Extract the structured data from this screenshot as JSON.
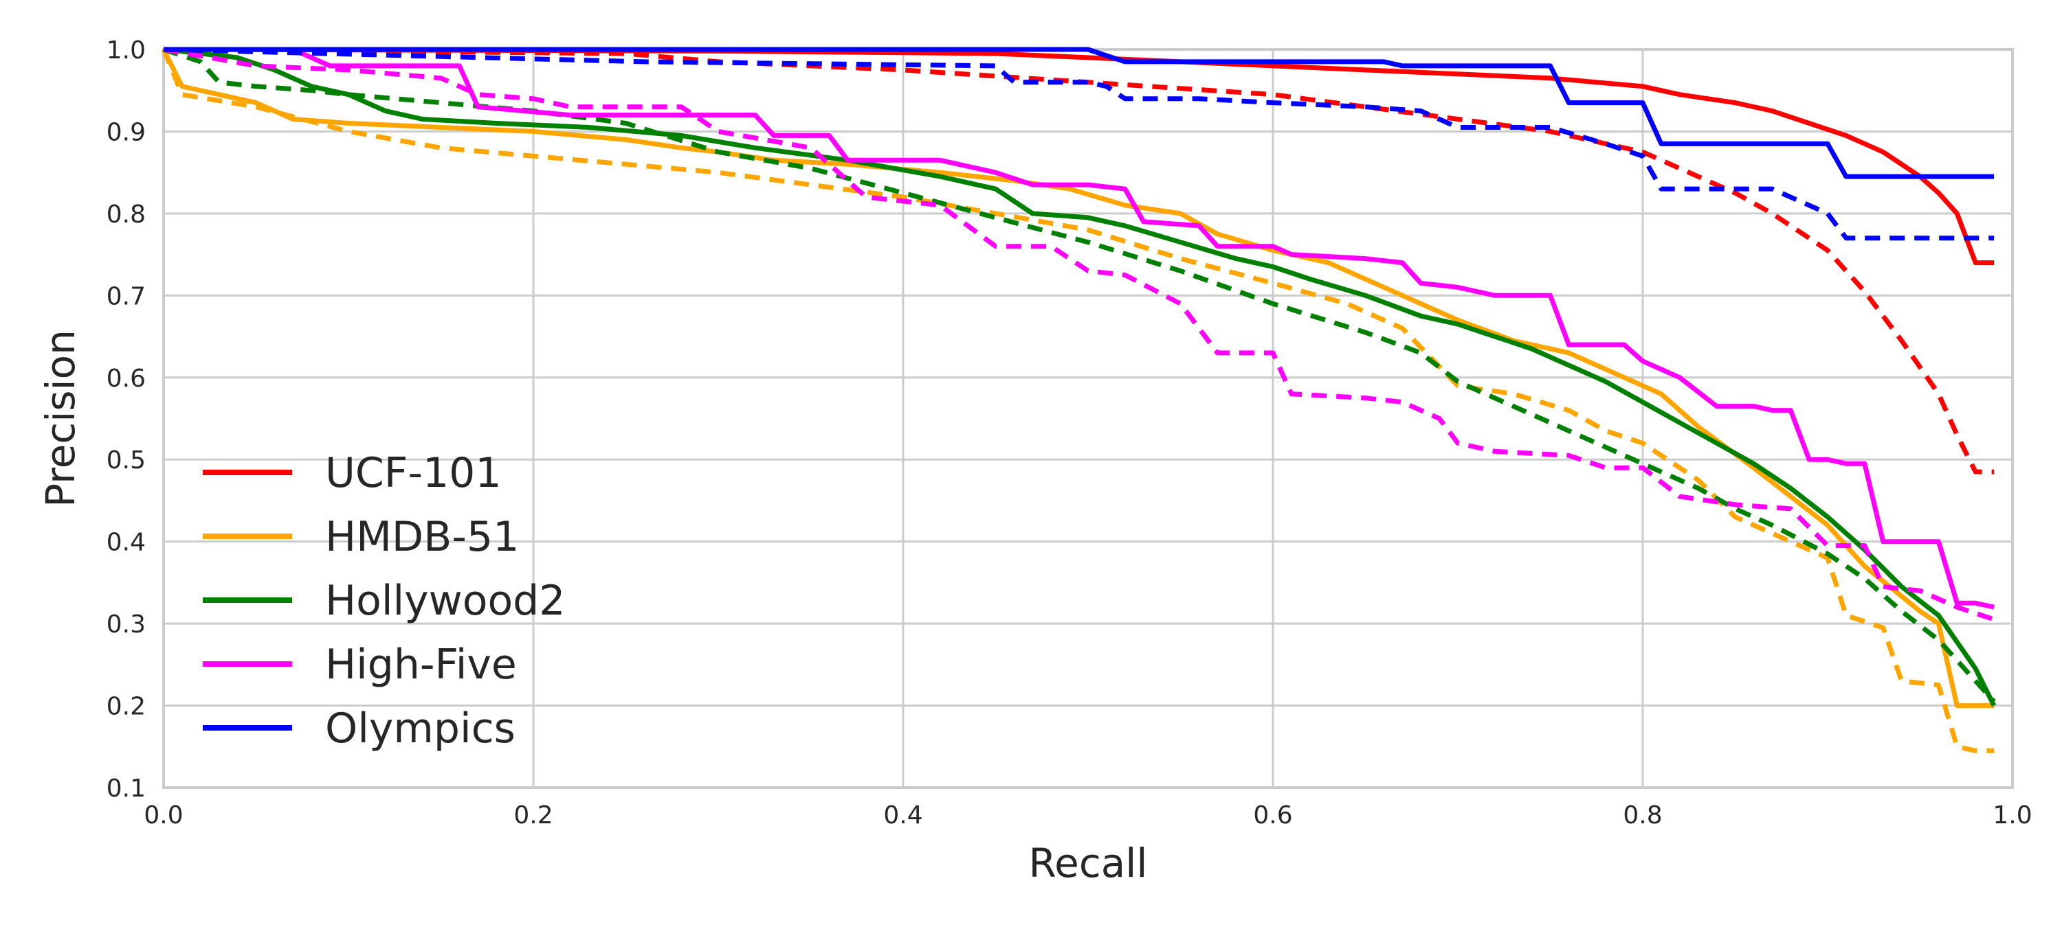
{
  "chart_data": {
    "type": "line",
    "xlabel": "Recall",
    "ylabel": "Precision",
    "xlim": [
      0.0,
      1.0
    ],
    "ylim": [
      0.1,
      1.0
    ],
    "xticks": [
      "0.0",
      "0.2",
      "0.4",
      "0.6",
      "0.8",
      "1.0"
    ],
    "yticks": [
      "0.1",
      "0.2",
      "0.3",
      "0.4",
      "0.5",
      "0.6",
      "0.7",
      "0.8",
      "0.9",
      "1.0"
    ],
    "grid": true,
    "legend_position": "lower-left",
    "legend": [
      "UCF-101",
      "HMDB-51",
      "Hollywood2",
      "High-Five",
      "Olympics"
    ],
    "series": [
      {
        "name": "UCF-101",
        "color": "#ff0000",
        "style": "solid",
        "x": [
          0.0,
          0.3,
          0.45,
          0.5,
          0.55,
          0.6,
          0.65,
          0.7,
          0.75,
          0.8,
          0.82,
          0.85,
          0.87,
          0.89,
          0.91,
          0.93,
          0.95,
          0.96,
          0.97,
          0.98,
          0.99
        ],
        "y": [
          1.0,
          0.998,
          0.995,
          0.99,
          0.985,
          0.98,
          0.975,
          0.97,
          0.965,
          0.955,
          0.945,
          0.935,
          0.925,
          0.91,
          0.895,
          0.875,
          0.845,
          0.825,
          0.8,
          0.74,
          0.74
        ]
      },
      {
        "name": "",
        "color": "#ff0000",
        "style": "dashed",
        "x": [
          0.0,
          0.25,
          0.3,
          0.4,
          0.5,
          0.6,
          0.7,
          0.75,
          0.8,
          0.82,
          0.85,
          0.87,
          0.9,
          0.92,
          0.94,
          0.96,
          0.97,
          0.98,
          0.99
        ],
        "y": [
          1.0,
          0.995,
          0.985,
          0.975,
          0.96,
          0.945,
          0.915,
          0.9,
          0.875,
          0.855,
          0.825,
          0.8,
          0.755,
          0.705,
          0.645,
          0.58,
          0.53,
          0.485,
          0.485
        ]
      },
      {
        "name": "HMDB-51",
        "color": "#ffa500",
        "style": "solid",
        "x": [
          0.0,
          0.01,
          0.05,
          0.07,
          0.1,
          0.15,
          0.2,
          0.25,
          0.28,
          0.3,
          0.33,
          0.37,
          0.42,
          0.46,
          0.49,
          0.52,
          0.55,
          0.57,
          0.6,
          0.63,
          0.65,
          0.67,
          0.7,
          0.73,
          0.76,
          0.78,
          0.81,
          0.83,
          0.86,
          0.9,
          0.92,
          0.95,
          0.96,
          0.97,
          0.99
        ],
        "y": [
          1.0,
          0.955,
          0.935,
          0.915,
          0.91,
          0.905,
          0.9,
          0.89,
          0.88,
          0.875,
          0.865,
          0.86,
          0.85,
          0.84,
          0.83,
          0.81,
          0.8,
          0.775,
          0.755,
          0.74,
          0.72,
          0.7,
          0.67,
          0.645,
          0.63,
          0.61,
          0.58,
          0.54,
          0.49,
          0.42,
          0.37,
          0.315,
          0.3,
          0.2,
          0.2
        ]
      },
      {
        "name": "",
        "color": "#ffa500",
        "style": "dashed",
        "x": [
          0.0,
          0.01,
          0.05,
          0.1,
          0.15,
          0.2,
          0.25,
          0.3,
          0.35,
          0.4,
          0.45,
          0.5,
          0.55,
          0.6,
          0.64,
          0.67,
          0.7,
          0.73,
          0.76,
          0.78,
          0.8,
          0.83,
          0.85,
          0.87,
          0.9,
          0.91,
          0.93,
          0.94,
          0.96,
          0.97,
          0.98,
          0.99
        ],
        "y": [
          1.0,
          0.945,
          0.93,
          0.9,
          0.88,
          0.87,
          0.86,
          0.85,
          0.835,
          0.82,
          0.8,
          0.78,
          0.745,
          0.715,
          0.69,
          0.66,
          0.59,
          0.58,
          0.56,
          0.535,
          0.52,
          0.475,
          0.43,
          0.41,
          0.38,
          0.31,
          0.295,
          0.23,
          0.225,
          0.15,
          0.145,
          0.145
        ]
      },
      {
        "name": "Hollywood2",
        "color": "#008000",
        "style": "solid",
        "x": [
          0.0,
          0.04,
          0.06,
          0.08,
          0.1,
          0.12,
          0.14,
          0.18,
          0.23,
          0.28,
          0.32,
          0.37,
          0.42,
          0.45,
          0.47,
          0.5,
          0.52,
          0.55,
          0.58,
          0.6,
          0.62,
          0.65,
          0.68,
          0.7,
          0.72,
          0.74,
          0.76,
          0.78,
          0.8,
          0.82,
          0.84,
          0.86,
          0.88,
          0.9,
          0.92,
          0.94,
          0.96,
          0.98,
          0.99
        ],
        "y": [
          1.0,
          0.99,
          0.975,
          0.955,
          0.945,
          0.925,
          0.915,
          0.91,
          0.905,
          0.895,
          0.88,
          0.865,
          0.845,
          0.83,
          0.8,
          0.795,
          0.785,
          0.765,
          0.745,
          0.735,
          0.72,
          0.7,
          0.675,
          0.665,
          0.65,
          0.635,
          0.615,
          0.595,
          0.57,
          0.545,
          0.52,
          0.495,
          0.465,
          0.43,
          0.39,
          0.345,
          0.31,
          0.245,
          0.2
        ]
      },
      {
        "name": "",
        "color": "#008000",
        "style": "dashed",
        "x": [
          0.0,
          0.02,
          0.03,
          0.05,
          0.08,
          0.1,
          0.15,
          0.2,
          0.25,
          0.3,
          0.35,
          0.4,
          0.45,
          0.5,
          0.55,
          0.6,
          0.65,
          0.68,
          0.7,
          0.73,
          0.76,
          0.8,
          0.83,
          0.85,
          0.87,
          0.9,
          0.92,
          0.94,
          0.96,
          0.98,
          0.99
        ],
        "y": [
          1.0,
          0.985,
          0.96,
          0.955,
          0.95,
          0.945,
          0.935,
          0.925,
          0.91,
          0.875,
          0.855,
          0.825,
          0.795,
          0.765,
          0.73,
          0.69,
          0.655,
          0.63,
          0.595,
          0.565,
          0.535,
          0.495,
          0.465,
          0.44,
          0.42,
          0.385,
          0.355,
          0.315,
          0.28,
          0.23,
          0.205
        ]
      },
      {
        "name": "High-Five",
        "color": "#ff00ff",
        "style": "solid",
        "x": [
          0.0,
          0.07,
          0.09,
          0.12,
          0.16,
          0.17,
          0.22,
          0.27,
          0.32,
          0.33,
          0.36,
          0.37,
          0.42,
          0.45,
          0.47,
          0.5,
          0.52,
          0.53,
          0.56,
          0.57,
          0.6,
          0.61,
          0.65,
          0.67,
          0.68,
          0.7,
          0.72,
          0.75,
          0.76,
          0.79,
          0.8,
          0.82,
          0.84,
          0.86,
          0.87,
          0.88,
          0.89,
          0.9,
          0.91,
          0.92,
          0.93,
          0.94,
          0.95,
          0.96,
          0.97,
          0.98,
          0.99
        ],
        "y": [
          1.0,
          1.0,
          0.98,
          0.98,
          0.98,
          0.93,
          0.92,
          0.92,
          0.92,
          0.895,
          0.895,
          0.865,
          0.865,
          0.85,
          0.835,
          0.835,
          0.83,
          0.79,
          0.785,
          0.76,
          0.76,
          0.75,
          0.745,
          0.74,
          0.715,
          0.71,
          0.7,
          0.7,
          0.64,
          0.64,
          0.62,
          0.6,
          0.565,
          0.565,
          0.56,
          0.56,
          0.5,
          0.5,
          0.495,
          0.495,
          0.4,
          0.4,
          0.4,
          0.4,
          0.325,
          0.325,
          0.32
        ]
      },
      {
        "name": "",
        "color": "#ff00ff",
        "style": "dashed",
        "x": [
          0.0,
          0.05,
          0.1,
          0.15,
          0.17,
          0.2,
          0.22,
          0.28,
          0.3,
          0.35,
          0.38,
          0.42,
          0.45,
          0.48,
          0.5,
          0.52,
          0.55,
          0.57,
          0.6,
          0.61,
          0.65,
          0.67,
          0.69,
          0.7,
          0.72,
          0.76,
          0.78,
          0.8,
          0.82,
          0.85,
          0.88,
          0.9,
          0.92,
          0.93,
          0.95,
          0.97,
          0.99
        ],
        "y": [
          1.0,
          0.98,
          0.975,
          0.965,
          0.945,
          0.94,
          0.93,
          0.93,
          0.9,
          0.88,
          0.82,
          0.81,
          0.76,
          0.76,
          0.73,
          0.725,
          0.69,
          0.63,
          0.63,
          0.58,
          0.575,
          0.57,
          0.55,
          0.52,
          0.51,
          0.505,
          0.49,
          0.49,
          0.455,
          0.445,
          0.44,
          0.395,
          0.395,
          0.345,
          0.34,
          0.32,
          0.305
        ]
      },
      {
        "name": "Olympics",
        "color": "#0000ff",
        "style": "solid",
        "x": [
          0.0,
          0.5,
          0.52,
          0.6,
          0.66,
          0.67,
          0.75,
          0.76,
          0.8,
          0.81,
          0.9,
          0.91,
          0.99
        ],
        "y": [
          1.0,
          1.0,
          0.985,
          0.985,
          0.985,
          0.98,
          0.98,
          0.935,
          0.935,
          0.885,
          0.885,
          0.845,
          0.845
        ]
      },
      {
        "name": "",
        "color": "#0000ff",
        "style": "dashed",
        "x": [
          0.0,
          0.26,
          0.45,
          0.46,
          0.5,
          0.51,
          0.52,
          0.56,
          0.6,
          0.65,
          0.68,
          0.7,
          0.75,
          0.78,
          0.8,
          0.81,
          0.85,
          0.87,
          0.9,
          0.91,
          0.99
        ],
        "y": [
          1.0,
          0.985,
          0.98,
          0.96,
          0.96,
          0.955,
          0.94,
          0.94,
          0.935,
          0.93,
          0.925,
          0.905,
          0.905,
          0.885,
          0.87,
          0.83,
          0.83,
          0.83,
          0.8,
          0.77,
          0.77
        ]
      }
    ]
  }
}
